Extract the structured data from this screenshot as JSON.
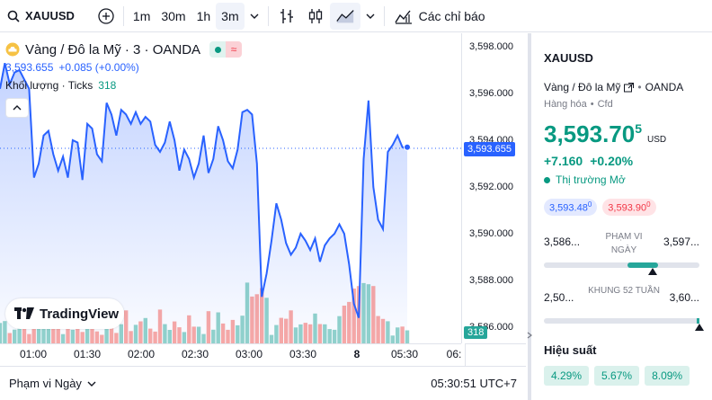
{
  "toolbar": {
    "symbol": "XAUUSD",
    "intervals": [
      "1m",
      "30m",
      "1h",
      "3m"
    ],
    "indicators_label": "Các chỉ báo"
  },
  "legend": {
    "title": "Vàng / Đô la Mỹ · 3 · OANDA",
    "price": "3,593.655",
    "change": "+0.085 (+0.00%)",
    "volume_label": "Khối lượng · Ticks",
    "volume_value": "318"
  },
  "price_axis": {
    "ticks": [
      "3,598.000",
      "3,596.000",
      "3,594.000",
      "3,592.000",
      "3,590.000",
      "3,588.000",
      "3,586.000"
    ],
    "current_price": "3,593.655",
    "current_volume": "318"
  },
  "time_axis": {
    "ticks": [
      "01:00",
      "01:30",
      "02:00",
      "02:30",
      "03:00",
      "03:30",
      "8",
      "05:30",
      "06:"
    ]
  },
  "bottombar": {
    "range_label": "Phạm vi Ngày",
    "clock": "05:30:51 UTC+7"
  },
  "logo": {
    "text": "TradingView"
  },
  "panel": {
    "symbol": "XAUUSD",
    "name": "Vàng / Đô la Mỹ",
    "exchange": "OANDA",
    "category": "Hàng hóa",
    "subcategory": "Cfd",
    "price_main": "3,593.70",
    "price_sup": "5",
    "currency": "USD",
    "change_abs": "+7.160",
    "change_pct": "+0.20%",
    "market_status": "Thị trường Mở",
    "bid": "3,593.48",
    "bid_sup": "0",
    "ask": "3,593.90",
    "ask_sup": "0",
    "day_low": "3,586...",
    "day_high": "3,597...",
    "day_range_label": "PHẠM VI NGÀY",
    "w52_low": "2,50...",
    "w52_high": "3,60...",
    "w52_label": "KHUNG 52 TUẦN",
    "performance_label": "Hiệu suất",
    "performance": [
      "4.29%",
      "5.67%",
      "8.09%"
    ]
  },
  "colors": {
    "line": "#2962ff",
    "up": "#089981",
    "down": "#f23645",
    "accent": "#2962ff"
  }
}
